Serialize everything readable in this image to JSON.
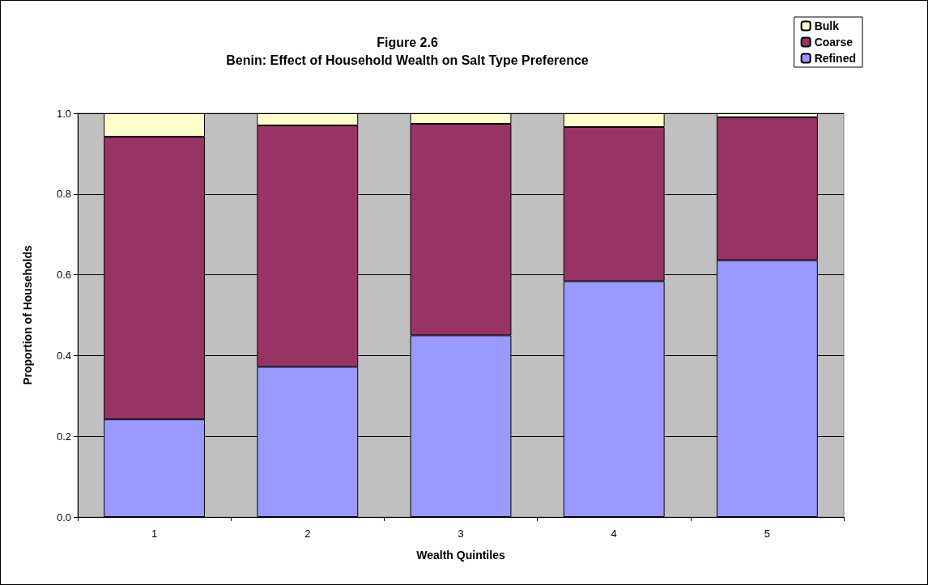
{
  "chart_data": {
    "type": "bar",
    "title": "Figure 2.6",
    "subtitle": "Benin: Effect of Household Wealth on Salt Type Preference",
    "xlabel": "Wealth Quintiles",
    "ylabel": "Proportion of Households",
    "categories": [
      "1",
      "2",
      "3",
      "4",
      "5"
    ],
    "stacked": true,
    "series": [
      {
        "name": "Refined",
        "color": "#9999ff",
        "values": [
          0.242,
          0.372,
          0.45,
          0.584,
          0.636
        ]
      },
      {
        "name": "Coarse",
        "color": "#993366",
        "values": [
          0.7,
          0.598,
          0.524,
          0.382,
          0.354
        ]
      },
      {
        "name": "Bulk",
        "color": "#ffffcc",
        "values": [
          0.058,
          0.03,
          0.026,
          0.034,
          0.01
        ]
      }
    ],
    "ylim": [
      0,
      1
    ],
    "yticks": [
      {
        "value": 0,
        "label": "0.0"
      },
      {
        "value": 0.2,
        "label": "0.2"
      },
      {
        "value": 0.4,
        "label": "0.4"
      },
      {
        "value": 0.6,
        "label": "0.6"
      },
      {
        "value": 0.8,
        "label": "0.8"
      },
      {
        "value": 1,
        "label": "1.0"
      }
    ],
    "grid": "y",
    "legend": "top right"
  }
}
